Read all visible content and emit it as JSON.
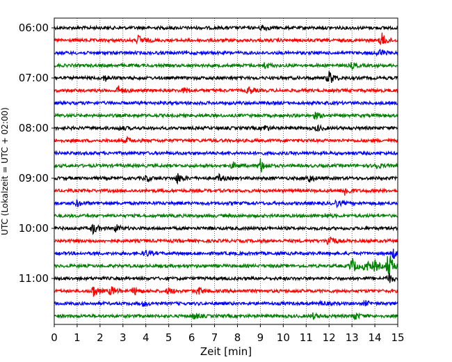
{
  "chart_data": {
    "type": "line",
    "title": "",
    "xlabel": "Zeit  [min]",
    "ylabel": "UTC (Lokalzeit = UTC + 02:00)",
    "xlim": [
      0,
      15
    ],
    "x_ticks": [
      0,
      1,
      2,
      3,
      4,
      5,
      6,
      7,
      8,
      9,
      10,
      11,
      12,
      13,
      14,
      15
    ],
    "x_tick_labels": [
      "0",
      "1",
      "2",
      "3",
      "4",
      "5",
      "6",
      "7",
      "8",
      "9",
      "10",
      "11",
      "12",
      "13",
      "14",
      "15"
    ],
    "y_ticks": [
      "06:00",
      "07:00",
      "08:00",
      "09:00",
      "10:00",
      "11:00"
    ],
    "y_tick_labels": [
      "06:00",
      "07:00",
      "08:00",
      "09:00",
      "10:00",
      "11:00"
    ],
    "start_time": "06:00",
    "minutes_per_trace": 15,
    "grid": "vertical dotted at each minute",
    "trace_colors": [
      "#000000",
      "#ff0000",
      "#0000ff",
      "#008000"
    ],
    "traces": [
      {
        "start": "06:00",
        "color": "#000000",
        "events": [
          {
            "t": 9.1,
            "amp": 0.3
          }
        ]
      },
      {
        "start": "06:15",
        "color": "#ff0000",
        "events": [
          {
            "t": 3.7,
            "amp": 0.5
          },
          {
            "t": 14.3,
            "amp": 0.7
          }
        ]
      },
      {
        "start": "06:30",
        "color": "#0000ff",
        "events": [
          {
            "t": 14.2,
            "amp": 0.4
          }
        ]
      },
      {
        "start": "06:45",
        "color": "#008000",
        "events": [
          {
            "t": 9.2,
            "amp": 0.3
          },
          {
            "t": 13.0,
            "amp": 0.25
          }
        ]
      },
      {
        "start": "07:00",
        "color": "#000000",
        "events": [
          {
            "t": 2.2,
            "amp": 0.3
          },
          {
            "t": 12.0,
            "amp": 0.7
          }
        ]
      },
      {
        "start": "07:15",
        "color": "#ff0000",
        "events": [
          {
            "t": 2.8,
            "amp": 0.4
          },
          {
            "t": 5.7,
            "amp": 0.25
          },
          {
            "t": 8.5,
            "amp": 0.35
          }
        ]
      },
      {
        "start": "07:30",
        "color": "#0000ff",
        "events": []
      },
      {
        "start": "07:45",
        "color": "#008000",
        "events": [
          {
            "t": 11.4,
            "amp": 0.3
          }
        ]
      },
      {
        "start": "08:00",
        "color": "#000000",
        "events": [
          {
            "t": 2.9,
            "amp": 0.2
          },
          {
            "t": 9.2,
            "amp": 0.25
          },
          {
            "t": 11.5,
            "amp": 0.25
          }
        ]
      },
      {
        "start": "08:15",
        "color": "#ff0000",
        "events": [
          {
            "t": 3.2,
            "amp": 0.25
          }
        ]
      },
      {
        "start": "08:30",
        "color": "#0000ff",
        "events": []
      },
      {
        "start": "08:45",
        "color": "#008000",
        "events": [
          {
            "t": 7.8,
            "amp": 0.3
          },
          {
            "t": 9.0,
            "amp": 0.7
          },
          {
            "t": 14.0,
            "amp": 0.35
          }
        ]
      },
      {
        "start": "09:00",
        "color": "#000000",
        "events": [
          {
            "t": 4.0,
            "amp": 0.3
          },
          {
            "t": 5.4,
            "amp": 0.5
          },
          {
            "t": 7.2,
            "amp": 0.3
          },
          {
            "t": 11.1,
            "amp": 0.45
          }
        ]
      },
      {
        "start": "09:15",
        "color": "#ff0000",
        "events": [
          {
            "t": 12.7,
            "amp": 0.5
          }
        ]
      },
      {
        "start": "09:30",
        "color": "#0000ff",
        "events": [
          {
            "t": 1.0,
            "amp": 0.3
          },
          {
            "t": 12.3,
            "amp": 0.3
          }
        ]
      },
      {
        "start": "09:45",
        "color": "#008000",
        "events": [
          {
            "t": 11.8,
            "amp": 0.2
          }
        ]
      },
      {
        "start": "10:00",
        "color": "#000000",
        "events": [
          {
            "t": 1.7,
            "amp": 0.5
          },
          {
            "t": 2.7,
            "amp": 0.35
          }
        ]
      },
      {
        "start": "10:15",
        "color": "#ff0000",
        "events": [
          {
            "t": 12.0,
            "amp": 0.7
          }
        ]
      },
      {
        "start": "10:30",
        "color": "#0000ff",
        "events": [
          {
            "t": 4.0,
            "amp": 0.3
          },
          {
            "t": 14.8,
            "amp": 0.5
          }
        ]
      },
      {
        "start": "10:45",
        "color": "#008000",
        "events": [
          {
            "t": 13.0,
            "amp": 0.8
          },
          {
            "t": 13.6,
            "amp": 0.6
          },
          {
            "t": 14.0,
            "amp": 0.5
          },
          {
            "t": 14.6,
            "amp": 1.4
          }
        ]
      },
      {
        "start": "11:00",
        "color": "#000000",
        "events": [
          {
            "t": 14.6,
            "amp": 0.5
          }
        ]
      },
      {
        "start": "11:15",
        "color": "#ff0000",
        "events": [
          {
            "t": 1.7,
            "amp": 0.6
          },
          {
            "t": 2.5,
            "amp": 0.45
          },
          {
            "t": 3.5,
            "amp": 0.35
          },
          {
            "t": 5.0,
            "amp": 0.3
          },
          {
            "t": 6.3,
            "amp": 0.35
          }
        ]
      },
      {
        "start": "11:30",
        "color": "#0000ff",
        "events": [
          {
            "t": 3.9,
            "amp": 0.2
          },
          {
            "t": 11.7,
            "amp": 0.2
          },
          {
            "t": 13.6,
            "amp": 0.2
          }
        ]
      },
      {
        "start": "11:45",
        "color": "#008000",
        "events": [
          {
            "t": 6.1,
            "amp": 0.3
          },
          {
            "t": 11.3,
            "amp": 0.25
          },
          {
            "t": 13.1,
            "amp": 0.35
          }
        ]
      }
    ]
  }
}
